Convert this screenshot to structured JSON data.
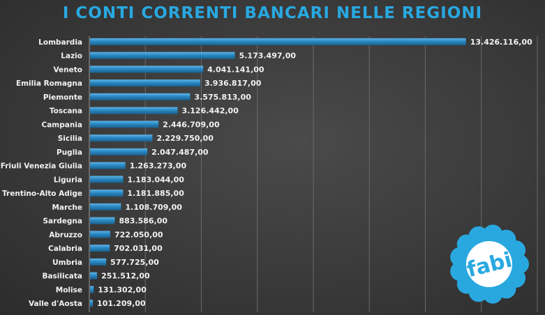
{
  "chart_data": {
    "type": "bar",
    "orientation": "horizontal",
    "title": "I CONTI CORRENTI BANCARI NELLE REGIONI",
    "categories": [
      "Lombardia",
      "Lazio",
      "Veneto",
      "Emilia Romagna",
      "Piemonte",
      "Toscana",
      "Campania",
      "Sicilia",
      "Puglia",
      "Friuli Venezia Giulia",
      "Liguria",
      "Trentino-Alto Adige",
      "Marche",
      "Sardegna",
      "Abruzzo",
      "Calabria",
      "Umbria",
      "Basilicata",
      "Molise",
      "Valle d'Aosta"
    ],
    "values": [
      13426116,
      5173497,
      4041141,
      3936817,
      3575813,
      3126442,
      2446709,
      2229750,
      2047487,
      1263273,
      1183044,
      1181885,
      1108709,
      883586,
      722050,
      702031,
      577725,
      251512,
      131302,
      101209
    ],
    "value_labels": [
      "13.426.116,00",
      "5.173.497,00",
      "4.041.141,00",
      "3.936.817,00",
      "3.575.813,00",
      "3.126.442,00",
      "2.446.709,00",
      "2.229.750,00",
      "2.047.487,00",
      "1.263.273,00",
      "1.183.044,00",
      "1.181.885,00",
      "1.108.709,00",
      "883.586,00",
      "722.050,00",
      "702.031,00",
      "577.725,00",
      "251.512,00",
      "131.302,00",
      "101.209,00"
    ],
    "xlim": [
      0,
      16000000
    ],
    "grid": true,
    "bar_color": "#2a89c4",
    "title_color": "#29a8e0"
  },
  "logo": {
    "text": "fabi",
    "color": "#29a8e0"
  }
}
